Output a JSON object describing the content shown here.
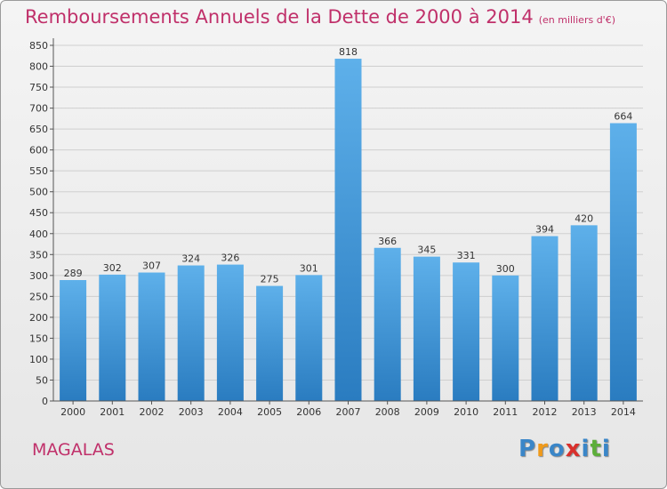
{
  "header": {
    "title": "Remboursements Annuels de la Dette de 2000 à 2014",
    "unit": "(en milliers d'€)"
  },
  "footer": {
    "commune": "MAGALAS",
    "logo_letters": [
      "P",
      "r",
      "o",
      "x",
      "i",
      "t",
      "i"
    ],
    "logo_colors": [
      "#3a86c8",
      "#f09a1a",
      "#3a86c8",
      "#d9302c",
      "#3a86c8",
      "#5cae3a",
      "#3a86c8"
    ]
  },
  "colors": {
    "bar_light": "#5eb0ea",
    "bar_dark": "#2a7cc0",
    "grid": "#cfcfcf",
    "axis": "#555555",
    "text": "#333333"
  },
  "chart_data": {
    "type": "bar",
    "categories": [
      "2000",
      "2001",
      "2002",
      "2003",
      "2004",
      "2005",
      "2006",
      "2007",
      "2008",
      "2009",
      "2010",
      "2011",
      "2012",
      "2013",
      "2014"
    ],
    "values": [
      289,
      302,
      307,
      324,
      326,
      275,
      301,
      818,
      366,
      345,
      331,
      300,
      394,
      420,
      664
    ],
    "ylim": [
      0,
      850
    ],
    "ytick_step": 50,
    "grid": true,
    "data_labels": true
  }
}
